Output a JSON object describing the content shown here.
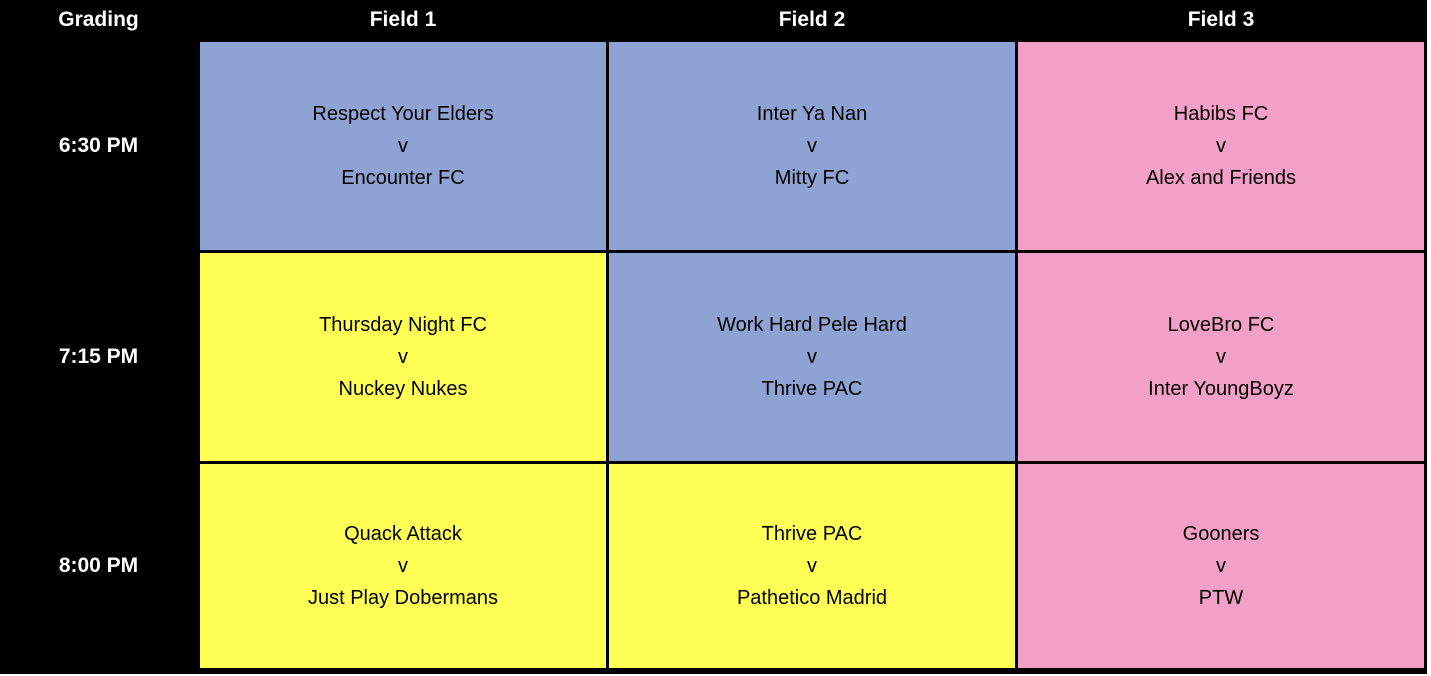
{
  "page": {
    "background": "#ffffff",
    "grid_line_color": "#000000"
  },
  "schedule": {
    "header": {
      "corner": "Grading",
      "fields": [
        "Field 1",
        "Field 2",
        "Field 3"
      ],
      "bg": "#000000",
      "text_color": "#ffffff"
    },
    "palette": {
      "blue": "#8FA2D4",
      "yellow": "#FFFF55",
      "pink": "#F2A0C8"
    },
    "rows": [
      {
        "time": "6:30 PM",
        "matches": [
          {
            "teams": [
              "Respect Your Elders",
              "Encounter FC"
            ],
            "separator": "v",
            "bg": "#8FA2D4"
          },
          {
            "teams": [
              "Inter Ya Nan",
              "Mitty FC"
            ],
            "separator": "v",
            "bg": "#8FA2D4"
          },
          {
            "teams": [
              "Habibs FC",
              "Alex and Friends"
            ],
            "separator": "v",
            "bg": "#F2A0C8"
          }
        ]
      },
      {
        "time": "7:15 PM",
        "matches": [
          {
            "teams": [
              "Thursday Night FC",
              "Nuckey Nukes"
            ],
            "separator": "v",
            "bg": "#FFFF55"
          },
          {
            "teams": [
              "Work Hard Pele Hard",
              "Thrive PAC"
            ],
            "separator": "v",
            "bg": "#8FA2D4"
          },
          {
            "teams": [
              "LoveBro FC",
              "Inter YoungBoyz"
            ],
            "separator": "v",
            "bg": "#F2A0C8"
          }
        ]
      },
      {
        "time": "8:00 PM",
        "matches": [
          {
            "teams": [
              "Quack Attack",
              "Just Play Dobermans"
            ],
            "separator": "v",
            "bg": "#FFFF55"
          },
          {
            "teams": [
              "Thrive PAC",
              "Pathetico Madrid"
            ],
            "separator": "v",
            "bg": "#FFFF55"
          },
          {
            "teams": [
              "Gooners",
              "PTW"
            ],
            "separator": "v",
            "bg": "#F2A0C8"
          }
        ]
      }
    ]
  }
}
